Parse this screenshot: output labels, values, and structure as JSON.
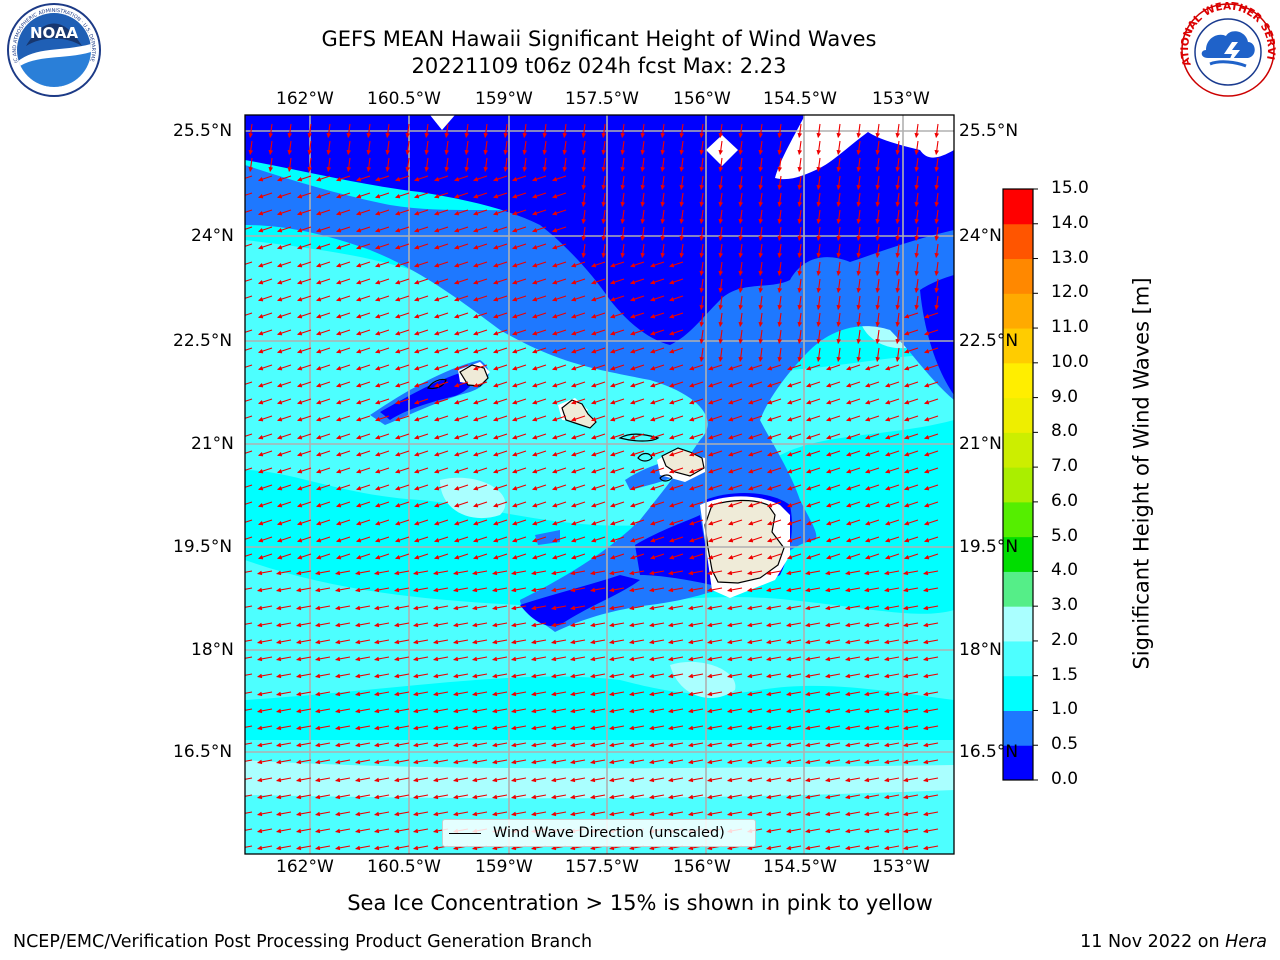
{
  "title_line1": "GEFS MEAN Hawaii Significant Height of Wind Waves",
  "title_line2": "20221109 t06z 024h fcst   Max: 2.23",
  "lon_labels": [
    "162°W",
    "160.5°W",
    "159°W",
    "157.5°W",
    "156°W",
    "154.5°W",
    "153°W"
  ],
  "lat_labels_left": [
    "25.5°N",
    "24°N",
    "22.5°N",
    "21°N",
    "19.5°N",
    "18°N",
    "16.5°N"
  ],
  "lat_labels_right": [
    "25.5°N",
    "24°N",
    "22.5°N",
    "21°N",
    "19.5°N",
    "18°N",
    "16.5°N"
  ],
  "colorbar": {
    "label": "Significant Height of Wind Waves [m]",
    "ticks": [
      "15.0",
      "14.0",
      "13.0",
      "12.0",
      "11.0",
      "10.0",
      "9.0",
      "8.0",
      "7.0",
      "6.0",
      "5.0",
      "4.0",
      "3.0",
      "2.0",
      "1.5",
      "1.0",
      "0.5",
      "0.0"
    ],
    "levels": [
      0.0,
      0.5,
      1.0,
      1.5,
      2.0,
      3.0,
      4.0,
      5.0,
      6.0,
      7.0,
      8.0,
      9.0,
      10.0,
      11.0,
      12.0,
      13.0,
      14.0,
      15.0
    ],
    "colors": [
      "#0000ff",
      "#1e78ff",
      "#00ffff",
      "#4dffff",
      "#aaffff",
      "#55ee88",
      "#00dd00",
      "#55ee00",
      "#aaee00",
      "#ccee00",
      "#eeee00",
      "#ffee00",
      "#ffcc00",
      "#ffaa00",
      "#ff8800",
      "#ff5500",
      "#ff0000"
    ]
  },
  "legend_label": "Wind Wave Direction (unscaled)",
  "note": "Sea Ice Concentration > 15% is shown in pink to yellow",
  "footer_left": "NCEP/EMC/Verification Post Processing Product Generation Branch",
  "footer_right_prefix": "11 Nov 2022 on ",
  "footer_right_host": "Hera",
  "logo_noaa_text": "NOAA",
  "logo_noaa_ring_text": "NATIONAL OCEANIC AND ATMOSPHERIC ADMINISTRATION · U.S. DEPARTMENT OF COMMERCE",
  "logo_nws_ring_text": "NATIONAL WEATHER SERVICE",
  "colors": {
    "deep_blue": "#0000ff",
    "mid_blue": "#1e78ff",
    "cyan": "#00ffff",
    "light_cyan": "#4dffff",
    "pale_cyan": "#aaffff",
    "land": "#efebd8",
    "arrow": "#ee0000",
    "grid": "#b0b0b0"
  }
}
